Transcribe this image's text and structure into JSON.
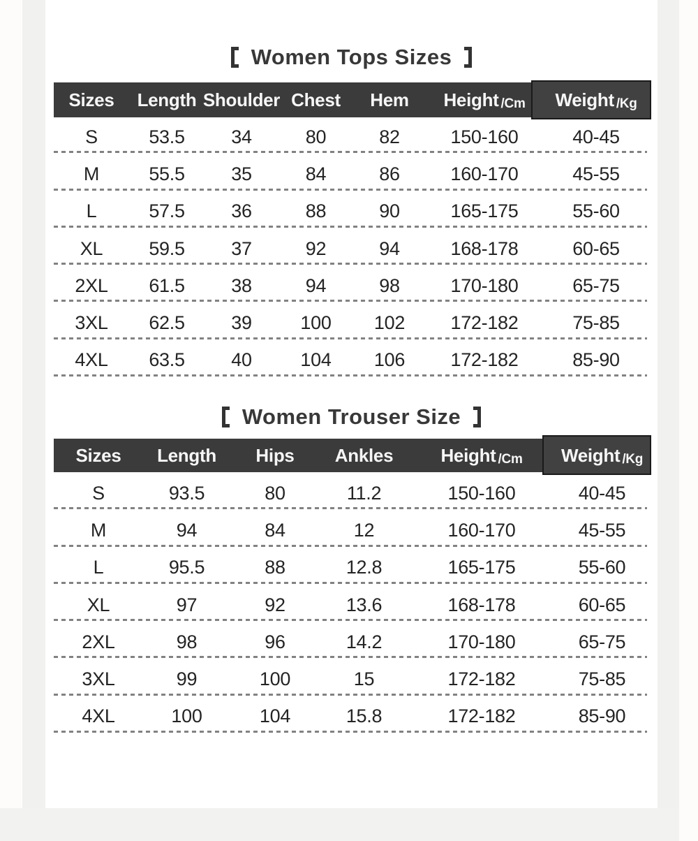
{
  "page": {
    "background_color": "#ffffff",
    "header_bar_color": "#3b3b3b",
    "header_text_color": "#f6f6f6",
    "body_text_color": "#242424",
    "divider_color": "#828282",
    "edge_strip_color": "#f1f1ef"
  },
  "chart_data": [
    {
      "type": "table",
      "title": "【Women Tops Sizes】",
      "title_text": "Women Tops Sizes",
      "bracket_left": "【",
      "bracket_right": "】",
      "columns": [
        {
          "label": "Sizes"
        },
        {
          "label": "Length"
        },
        {
          "label": "Shoulder"
        },
        {
          "label": "Chest"
        },
        {
          "label": "Hem"
        },
        {
          "label": "Height",
          "unit": "/Cm"
        },
        {
          "label": "Weight",
          "unit": "/Kg"
        }
      ],
      "rows": [
        [
          "S",
          "53.5",
          "34",
          "80",
          "82",
          "150-160",
          "40-45"
        ],
        [
          "M",
          "55.5",
          "35",
          "84",
          "86",
          "160-170",
          "45-55"
        ],
        [
          "L",
          "57.5",
          "36",
          "88",
          "90",
          "165-175",
          "55-60"
        ],
        [
          "XL",
          "59.5",
          "37",
          "92",
          "94",
          "168-178",
          "60-65"
        ],
        [
          "2XL",
          "61.5",
          "38",
          "94",
          "98",
          "170-180",
          "65-75"
        ],
        [
          "3XL",
          "62.5",
          "39",
          "100",
          "102",
          "172-182",
          "75-85"
        ],
        [
          "4XL",
          "63.5",
          "40",
          "104",
          "106",
          "172-182",
          "85-90"
        ]
      ]
    },
    {
      "type": "table",
      "title": "【Women Trouser Size】",
      "title_text": "Women Trouser Size",
      "bracket_left": "【",
      "bracket_right": "】",
      "columns": [
        {
          "label": "Sizes"
        },
        {
          "label": "Length"
        },
        {
          "label": "Hips"
        },
        {
          "label": "Ankles"
        },
        {
          "label": "Height",
          "unit": "/Cm"
        },
        {
          "label": "Weight",
          "unit": "/Kg"
        }
      ],
      "rows": [
        [
          "S",
          "93.5",
          "80",
          "11.2",
          "150-160",
          "40-45"
        ],
        [
          "M",
          "94",
          "84",
          "12",
          "160-170",
          "45-55"
        ],
        [
          "L",
          "95.5",
          "88",
          "12.8",
          "165-175",
          "55-60"
        ],
        [
          "XL",
          "97",
          "92",
          "13.6",
          "168-178",
          "60-65"
        ],
        [
          "2XL",
          "98",
          "96",
          "14.2",
          "170-180",
          "65-75"
        ],
        [
          "3XL",
          "99",
          "100",
          "15",
          "172-182",
          "75-85"
        ],
        [
          "4XL",
          "100",
          "104",
          "15.8",
          "172-182",
          "85-90"
        ]
      ]
    }
  ]
}
